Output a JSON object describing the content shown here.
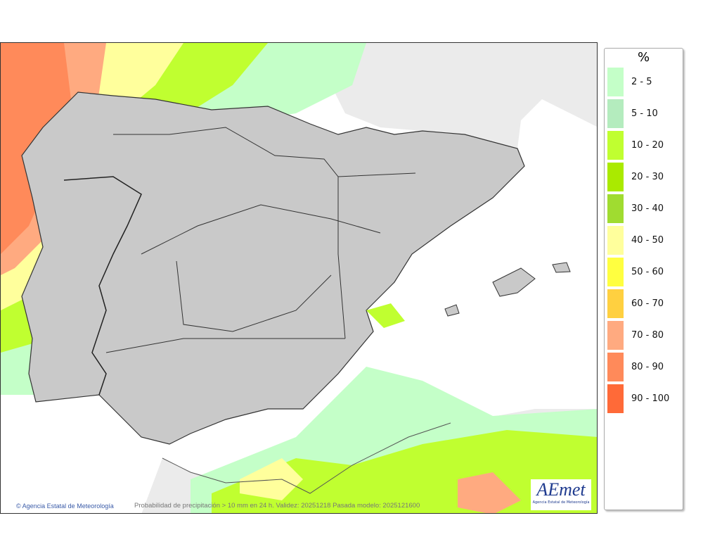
{
  "map": {
    "credit": "Agencia Estatal de Meteorología",
    "caption": "Probabilidad de precipitación > 10 mm en 24 h. Validez: 20251218 Pasada modelo: 2025121600",
    "logo_text": "AEmet",
    "logo_subtext": "Agencia Estatal de Meteorología",
    "colors": {
      "land": "#c9c9c9",
      "foreign_land": "#ebebeb",
      "sea": "#ffffff",
      "border": "#333333"
    }
  },
  "legend": {
    "unit": "%",
    "items": [
      {
        "label": "2 - 5",
        "color": "#c4ffc8"
      },
      {
        "label": "5 - 10",
        "color": "#b4ecbe"
      },
      {
        "label": "10 - 20",
        "color": "#c0ff30"
      },
      {
        "label": "20 - 30",
        "color": "#aaea00"
      },
      {
        "label": "30 - 40",
        "color": "#a0dc30"
      },
      {
        "label": "40 - 50",
        "color": "#ffff9c"
      },
      {
        "label": "50 - 60",
        "color": "#ffff40"
      },
      {
        "label": "60 - 70",
        "color": "#ffd040"
      },
      {
        "label": "70 - 80",
        "color": "#ffaa80"
      },
      {
        "label": "80 - 90",
        "color": "#ff8a5a"
      },
      {
        "label": "90 - 100",
        "color": "#ff6a38"
      }
    ]
  }
}
